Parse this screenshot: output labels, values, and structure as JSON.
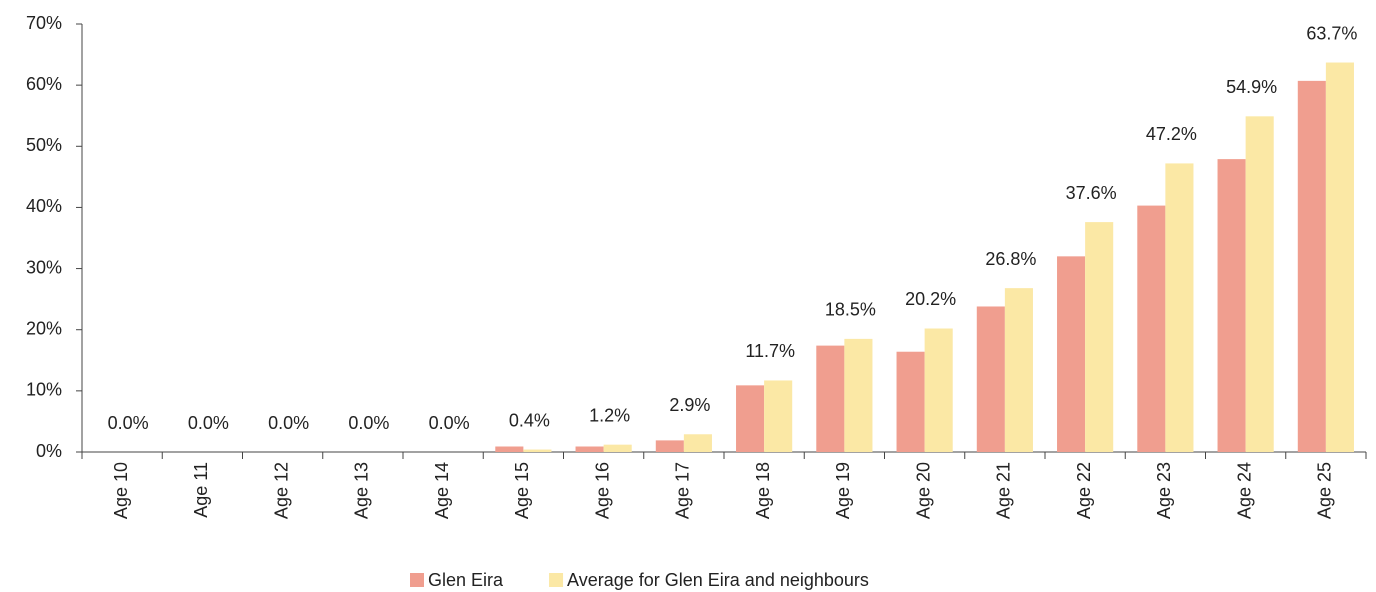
{
  "chart_data": {
    "type": "bar",
    "categories": [
      "Age 10",
      "Age 11",
      "Age 12",
      "Age 13",
      "Age 14",
      "Age 15",
      "Age 16",
      "Age 17",
      "Age 18",
      "Age 19",
      "Age 20",
      "Age 21",
      "Age 22",
      "Age 23",
      "Age 24",
      "Age 25"
    ],
    "series": [
      {
        "name": "Glen Eira",
        "color": "#f09e8f",
        "values": [
          0,
          0,
          0,
          0,
          0,
          0.9,
          0.9,
          1.9,
          10.9,
          17.4,
          16.4,
          23.8,
          32.0,
          40.3,
          47.9,
          60.7
        ]
      },
      {
        "name": "Average for Glen Eira and neighbours",
        "color": "#fbe8a5",
        "values": [
          0,
          0,
          0,
          0,
          0,
          0.4,
          1.2,
          2.9,
          11.7,
          18.5,
          20.2,
          26.8,
          37.6,
          47.2,
          54.9,
          63.7
        ],
        "value_labels": [
          "0.0%",
          "0.0%",
          "0.0%",
          "0.0%",
          "0.0%",
          "0.4%",
          "1.2%",
          "2.9%",
          "11.7%",
          "18.5%",
          "20.2%",
          "26.8%",
          "37.6%",
          "47.2%",
          "54.9%",
          "63.7%"
        ]
      }
    ],
    "ylim": [
      0,
      70
    ],
    "yticks": [
      {
        "value": 0,
        "label": "0%"
      },
      {
        "value": 10,
        "label": "10%"
      },
      {
        "value": 20,
        "label": "20%"
      },
      {
        "value": 30,
        "label": "30%"
      },
      {
        "value": 40,
        "label": "40%"
      },
      {
        "value": 50,
        "label": "50%"
      },
      {
        "value": 60,
        "label": "60%"
      },
      {
        "value": 70,
        "label": "70%"
      }
    ],
    "legend": "bottom"
  }
}
